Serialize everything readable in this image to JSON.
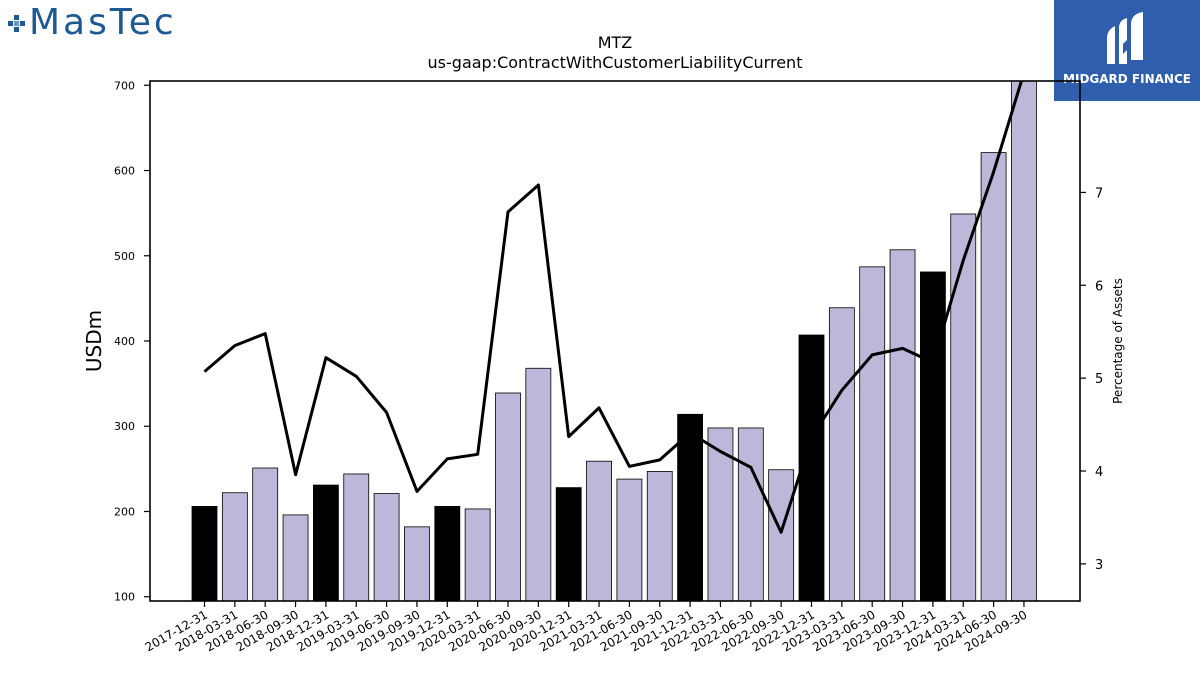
{
  "brand_left": {
    "name": "MasTec",
    "color": "#1d5a93"
  },
  "brand_right": {
    "name": "MIDGARD FINANCE",
    "bg": "#2f5eac"
  },
  "chart_data": {
    "type": "bar",
    "title": "MTZ",
    "subtitle": "us-gaap:ContractWithCustomerLiabilityCurrent",
    "ylabel": "USDm",
    "y2label": "Percentage of Assets",
    "ylim": [
      95,
      705
    ],
    "y2lim": [
      2.6,
      8.2
    ],
    "yticks": [
      100,
      200,
      300,
      400,
      500,
      600,
      700
    ],
    "y2ticks": [
      3,
      4,
      5,
      6,
      7
    ],
    "colors": {
      "annual": "#000000",
      "quarterly": "#bcb8d9",
      "line": "#000000"
    },
    "categories": [
      "2017-12-31",
      "2018-03-31",
      "2018-06-30",
      "2018-09-30",
      "2018-12-31",
      "2019-03-31",
      "2019-06-30",
      "2019-09-30",
      "2019-12-31",
      "2020-03-31",
      "2020-06-30",
      "2020-09-30",
      "2020-12-31",
      "2021-03-31",
      "2021-06-30",
      "2021-09-30",
      "2021-12-31",
      "2022-03-31",
      "2022-06-30",
      "2022-09-30",
      "2022-12-31",
      "2023-03-31",
      "2023-06-30",
      "2023-09-30",
      "2023-12-31",
      "2024-03-31",
      "2024-06-30",
      "2024-09-30"
    ],
    "annual": [
      true,
      false,
      false,
      false,
      true,
      false,
      false,
      false,
      true,
      false,
      false,
      false,
      true,
      false,
      false,
      false,
      true,
      false,
      false,
      false,
      true,
      false,
      false,
      false,
      true,
      false,
      false,
      false
    ],
    "series": [
      {
        "values": [
          206,
          222,
          251,
          196,
          231,
          244,
          221,
          182,
          206,
          203,
          339,
          368,
          228,
          259,
          238,
          247,
          314,
          298,
          298,
          249,
          407,
          439,
          487,
          507,
          481,
          549,
          621,
          710
        ],
        "axis": "left",
        "kind": "bar"
      },
      {
        "values": [
          5.07,
          5.35,
          5.48,
          3.96,
          5.22,
          5.02,
          4.63,
          3.78,
          4.13,
          4.18,
          6.79,
          7.08,
          4.37,
          4.68,
          4.05,
          4.12,
          4.41,
          4.21,
          4.04,
          3.34,
          4.36,
          4.87,
          5.25,
          5.32,
          5.17,
          6.27,
          7.22,
          8.29
        ],
        "axis": "right",
        "kind": "line"
      }
    ]
  }
}
